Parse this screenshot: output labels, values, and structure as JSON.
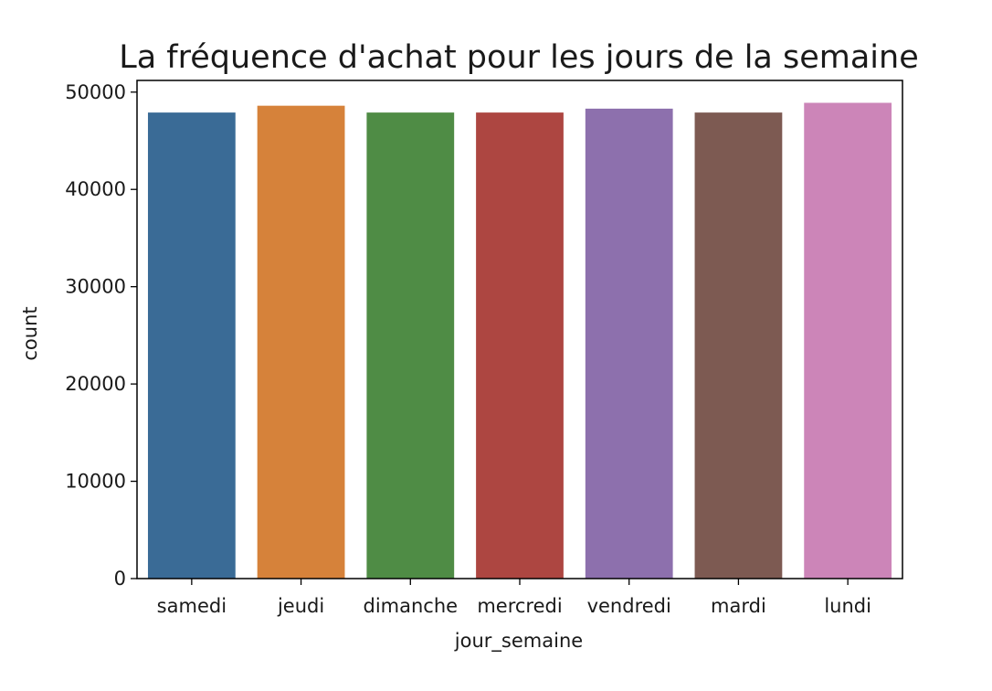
{
  "chart_data": {
    "type": "bar",
    "title": "La fréquence d'achat pour les jours de la semaine",
    "xlabel": "jour_semaine",
    "ylabel": "count",
    "categories": [
      "samedi",
      "jeudi",
      "dimanche",
      "mercredi",
      "vendredi",
      "mardi",
      "lundi"
    ],
    "values": [
      47900,
      48600,
      47900,
      47900,
      48300,
      47900,
      48900
    ],
    "colors": [
      "#3a6b96",
      "#d6823a",
      "#4f8c45",
      "#ad4641",
      "#8d70ad",
      "#7d5a52",
      "#cc85b8"
    ],
    "ylim": [
      0,
      51200
    ],
    "yticks": [
      0,
      10000,
      20000,
      30000,
      40000,
      50000
    ],
    "ytick_labels": [
      "0",
      "10000",
      "20000",
      "30000",
      "40000",
      "50000"
    ],
    "grid": false,
    "legend": "none"
  }
}
